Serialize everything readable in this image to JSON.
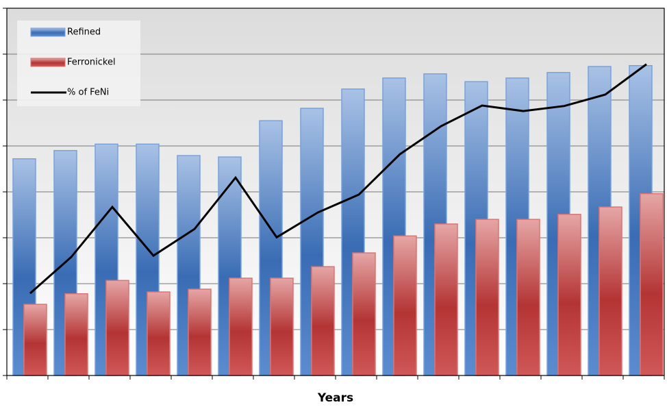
{
  "chart_data": {
    "type": "bar-line",
    "x_label": "Years",
    "categories": [
      null,
      null,
      null,
      null,
      null,
      null,
      null,
      null,
      null,
      null,
      null,
      null,
      null,
      null,
      null,
      null
    ],
    "series": [
      {
        "name": "Refined",
        "type": "bar",
        "color": "#3f78c8",
        "values": [
          4.72,
          4.9,
          5.04,
          5.04,
          4.79,
          4.76,
          5.55,
          5.82,
          6.24,
          6.48,
          6.57,
          6.4,
          6.48,
          6.6,
          6.73,
          6.75
        ]
      },
      {
        "name": "Ferronickel",
        "type": "bar",
        "color": "#c83a3a",
        "values": [
          1.55,
          1.78,
          2.07,
          1.82,
          1.88,
          2.12,
          2.12,
          2.37,
          2.67,
          3.04,
          3.3,
          3.4,
          3.4,
          3.51,
          3.67,
          3.96
        ]
      },
      {
        "name": "% of FeNi",
        "type": "line",
        "color": "#000000",
        "values": [
          1.79,
          2.58,
          3.67,
          2.61,
          3.19,
          4.31,
          3.01,
          3.55,
          3.94,
          4.82,
          5.43,
          5.88,
          5.76,
          5.87,
          6.12,
          6.78
        ]
      }
    ],
    "ylim": [
      0,
      8
    ],
    "yticks": [
      0,
      1,
      2,
      3,
      4,
      5,
      6,
      7,
      8
    ],
    "grid": true,
    "legend": "upper left"
  }
}
